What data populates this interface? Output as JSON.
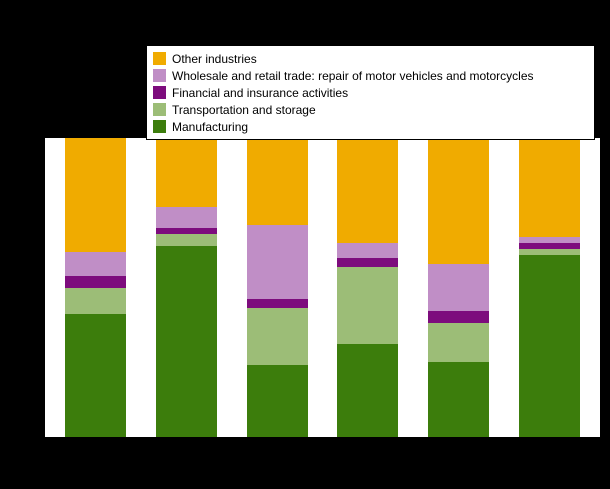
{
  "figure": {
    "background_color": "#000000",
    "plot_background_color": "#ffffff"
  },
  "legend": {
    "position": "top",
    "items": [
      {
        "label": "Other industries",
        "color": "#f0ab00"
      },
      {
        "label": "Wholesale and retail trade: repair of motor vehicles and motorcycles",
        "color": "#c08ec6"
      },
      {
        "label": "Financial and insurance activities",
        "color": "#7d0c7d"
      },
      {
        "label": "Transportation and storage",
        "color": "#9cbd77"
      },
      {
        "label": "Manufacturing",
        "color": "#3c7d0c"
      }
    ]
  },
  "chart_data": {
    "type": "bar",
    "stacked": true,
    "title": "",
    "xlabel": "",
    "ylabel": "",
    "ylim": [
      0,
      100
    ],
    "grid": false,
    "legend_position": "top",
    "categories": [
      "",
      "",
      "",
      "",
      "",
      ""
    ],
    "series": [
      {
        "name": "Manufacturing",
        "color": "#3c7d0c",
        "values": [
          41,
          64,
          24,
          31,
          25,
          61
        ]
      },
      {
        "name": "Transportation and storage",
        "color": "#9cbd77",
        "values": [
          9,
          4,
          19,
          26,
          13,
          2
        ]
      },
      {
        "name": "Financial and insurance activities",
        "color": "#7d0c7d",
        "values": [
          4,
          2,
          3,
          3,
          4,
          2
        ]
      },
      {
        "name": "Wholesale and retail trade: repair of motor vehicles and motorcycles",
        "color": "#c08ec6",
        "values": [
          8,
          7,
          25,
          5,
          16,
          2
        ]
      },
      {
        "name": "Other industries",
        "color": "#f0ab00",
        "values": [
          38,
          23,
          29,
          35,
          42,
          33
        ]
      }
    ]
  }
}
